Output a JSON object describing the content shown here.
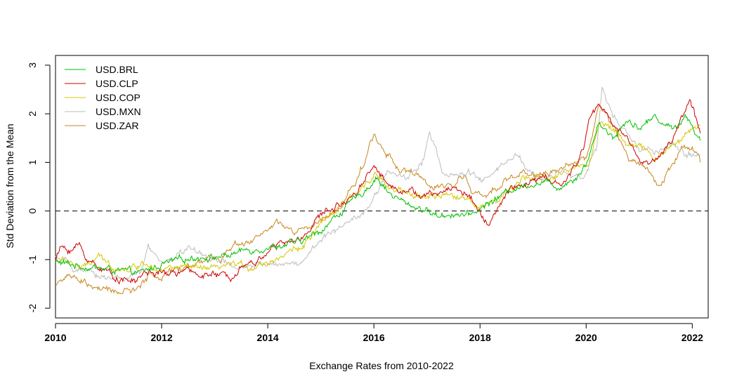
{
  "chart_data": {
    "type": "line",
    "title": "",
    "xlabel": "Exchange Rates from 2010-2022",
    "ylabel": "Std Deviation from the Mean",
    "xlim": [
      2010,
      2022.3
    ],
    "ylim": [
      -2.2,
      3.2
    ],
    "x_ticks": [
      2010,
      2012,
      2014,
      2016,
      2018,
      2020,
      2022
    ],
    "y_ticks": [
      -2,
      -1,
      0,
      1,
      2,
      3
    ],
    "reference_line": {
      "y": 0,
      "style": "dashed",
      "color": "#000000"
    },
    "legend": {
      "position": "top-left"
    },
    "grid": false,
    "series": [
      {
        "name": "USD.BRL",
        "color": "#00c000",
        "points": [
          [
            2010.0,
            -1.05
          ],
          [
            2010.3,
            -1.1
          ],
          [
            2010.6,
            -1.15
          ],
          [
            2011.0,
            -1.2
          ],
          [
            2011.3,
            -1.25
          ],
          [
            2011.6,
            -1.28
          ],
          [
            2012.0,
            -1.1
          ],
          [
            2012.3,
            -1.02
          ],
          [
            2012.6,
            -0.95
          ],
          [
            2013.0,
            -0.95
          ],
          [
            2013.3,
            -0.9
          ],
          [
            2013.6,
            -0.8
          ],
          [
            2014.0,
            -0.75
          ],
          [
            2014.3,
            -0.7
          ],
          [
            2014.6,
            -0.65
          ],
          [
            2015.0,
            -0.4
          ],
          [
            2015.3,
            -0.1
          ],
          [
            2015.6,
            0.2
          ],
          [
            2015.9,
            0.5
          ],
          [
            2016.05,
            0.7
          ],
          [
            2016.3,
            0.35
          ],
          [
            2016.6,
            0.15
          ],
          [
            2016.9,
            0.05
          ],
          [
            2017.2,
            -0.1
          ],
          [
            2017.5,
            -0.05
          ],
          [
            2017.8,
            -0.1
          ],
          [
            2018.0,
            0.05
          ],
          [
            2018.3,
            0.25
          ],
          [
            2018.6,
            0.45
          ],
          [
            2018.9,
            0.55
          ],
          [
            2019.2,
            0.6
          ],
          [
            2019.5,
            0.5
          ],
          [
            2019.8,
            0.7
          ],
          [
            2020.0,
            0.95
          ],
          [
            2020.25,
            1.85
          ],
          [
            2020.5,
            1.5
          ],
          [
            2020.8,
            1.9
          ],
          [
            2021.0,
            1.7
          ],
          [
            2021.3,
            1.95
          ],
          [
            2021.6,
            1.7
          ],
          [
            2021.9,
            1.95
          ],
          [
            2022.15,
            1.45
          ]
        ]
      },
      {
        "name": "USD.CLP",
        "color": "#cc0000",
        "points": [
          [
            2010.0,
            -1.0
          ],
          [
            2010.1,
            -0.75
          ],
          [
            2010.3,
            -0.8
          ],
          [
            2010.45,
            -0.7
          ],
          [
            2010.6,
            -1.0
          ],
          [
            2010.9,
            -1.2
          ],
          [
            2011.2,
            -1.4
          ],
          [
            2011.5,
            -1.45
          ],
          [
            2011.7,
            -1.25
          ],
          [
            2012.0,
            -1.3
          ],
          [
            2012.4,
            -1.25
          ],
          [
            2012.8,
            -1.3
          ],
          [
            2013.0,
            -1.32
          ],
          [
            2013.3,
            -1.35
          ],
          [
            2013.5,
            -1.1
          ],
          [
            2013.8,
            -1.05
          ],
          [
            2014.0,
            -0.8
          ],
          [
            2014.3,
            -0.65
          ],
          [
            2014.6,
            -0.6
          ],
          [
            2014.9,
            -0.2
          ],
          [
            2015.1,
            0.0
          ],
          [
            2015.4,
            0.15
          ],
          [
            2015.7,
            0.45
          ],
          [
            2016.0,
            0.95
          ],
          [
            2016.3,
            0.5
          ],
          [
            2016.6,
            0.45
          ],
          [
            2016.9,
            0.3
          ],
          [
            2017.2,
            0.35
          ],
          [
            2017.5,
            0.5
          ],
          [
            2017.8,
            0.3
          ],
          [
            2018.0,
            0.0
          ],
          [
            2018.15,
            -0.3
          ],
          [
            2018.35,
            0.05
          ],
          [
            2018.6,
            0.5
          ],
          [
            2018.9,
            0.55
          ],
          [
            2019.2,
            0.7
          ],
          [
            2019.5,
            0.5
          ],
          [
            2019.8,
            0.9
          ],
          [
            2019.95,
            1.3
          ],
          [
            2020.05,
            1.9
          ],
          [
            2020.25,
            2.2
          ],
          [
            2020.5,
            1.8
          ],
          [
            2020.8,
            1.5
          ],
          [
            2021.0,
            1.0
          ],
          [
            2021.3,
            1.05
          ],
          [
            2021.6,
            1.4
          ],
          [
            2021.95,
            2.3
          ],
          [
            2022.15,
            1.6
          ]
        ]
      },
      {
        "name": "USD.COP",
        "color": "#d4c800",
        "points": [
          [
            2010.0,
            -1.0
          ],
          [
            2010.3,
            -1.05
          ],
          [
            2010.5,
            -1.2
          ],
          [
            2010.8,
            -0.95
          ],
          [
            2011.1,
            -1.15
          ],
          [
            2011.4,
            -1.2
          ],
          [
            2011.7,
            -1.05
          ],
          [
            2012.0,
            -1.2
          ],
          [
            2012.4,
            -1.15
          ],
          [
            2012.8,
            -1.2
          ],
          [
            2013.0,
            -1.2
          ],
          [
            2013.4,
            -1.1
          ],
          [
            2013.7,
            -1.15
          ],
          [
            2014.0,
            -1.05
          ],
          [
            2014.3,
            -0.9
          ],
          [
            2014.6,
            -0.75
          ],
          [
            2014.9,
            -0.45
          ],
          [
            2015.1,
            -0.15
          ],
          [
            2015.4,
            0.1
          ],
          [
            2015.7,
            0.4
          ],
          [
            2016.0,
            0.8
          ],
          [
            2016.3,
            0.45
          ],
          [
            2016.6,
            0.35
          ],
          [
            2016.9,
            0.3
          ],
          [
            2017.2,
            0.3
          ],
          [
            2017.5,
            0.3
          ],
          [
            2017.8,
            0.25
          ],
          [
            2018.0,
            0.1
          ],
          [
            2018.3,
            0.2
          ],
          [
            2018.6,
            0.45
          ],
          [
            2018.9,
            0.7
          ],
          [
            2019.2,
            0.65
          ],
          [
            2019.5,
            0.75
          ],
          [
            2019.8,
            0.9
          ],
          [
            2020.05,
            1.0
          ],
          [
            2020.25,
            1.8
          ],
          [
            2020.5,
            1.7
          ],
          [
            2020.8,
            1.4
          ],
          [
            2021.0,
            1.3
          ],
          [
            2021.3,
            1.1
          ],
          [
            2021.6,
            1.3
          ],
          [
            2021.9,
            1.6
          ],
          [
            2022.15,
            1.75
          ]
        ]
      },
      {
        "name": "USD.MXN",
        "color": "#bdbdbd",
        "points": [
          [
            2010.0,
            -0.95
          ],
          [
            2010.3,
            -1.15
          ],
          [
            2010.6,
            -1.3
          ],
          [
            2011.0,
            -1.35
          ],
          [
            2011.3,
            -1.4
          ],
          [
            2011.6,
            -1.3
          ],
          [
            2011.75,
            -0.75
          ],
          [
            2012.0,
            -1.1
          ],
          [
            2012.3,
            -0.9
          ],
          [
            2012.5,
            -0.75
          ],
          [
            2012.8,
            -0.95
          ],
          [
            2013.1,
            -1.0
          ],
          [
            2013.4,
            -1.2
          ],
          [
            2013.7,
            -1.15
          ],
          [
            2014.0,
            -1.1
          ],
          [
            2014.3,
            -1.05
          ],
          [
            2014.6,
            -1.1
          ],
          [
            2014.9,
            -0.7
          ],
          [
            2015.2,
            -0.45
          ],
          [
            2015.5,
            -0.2
          ],
          [
            2015.8,
            0.0
          ],
          [
            2016.05,
            0.3
          ],
          [
            2016.25,
            0.85
          ],
          [
            2016.6,
            0.65
          ],
          [
            2016.9,
            1.0
          ],
          [
            2017.05,
            1.6
          ],
          [
            2017.3,
            0.8
          ],
          [
            2017.6,
            0.7
          ],
          [
            2017.8,
            0.8
          ],
          [
            2018.0,
            0.6
          ],
          [
            2018.3,
            0.8
          ],
          [
            2018.5,
            1.0
          ],
          [
            2018.7,
            1.15
          ],
          [
            2018.9,
            0.85
          ],
          [
            2019.2,
            0.6
          ],
          [
            2019.5,
            0.85
          ],
          [
            2019.8,
            0.75
          ],
          [
            2020.0,
            0.75
          ],
          [
            2020.2,
            1.3
          ],
          [
            2020.3,
            2.55
          ],
          [
            2020.5,
            1.95
          ],
          [
            2020.8,
            1.5
          ],
          [
            2021.0,
            1.3
          ],
          [
            2021.3,
            1.2
          ],
          [
            2021.6,
            1.35
          ],
          [
            2021.9,
            1.15
          ],
          [
            2022.15,
            1.15
          ]
        ]
      },
      {
        "name": "USD.ZAR",
        "color": "#c8861e",
        "points": [
          [
            2010.0,
            -1.5
          ],
          [
            2010.2,
            -1.35
          ],
          [
            2010.5,
            -1.45
          ],
          [
            2010.8,
            -1.6
          ],
          [
            2011.0,
            -1.65
          ],
          [
            2011.3,
            -1.65
          ],
          [
            2011.6,
            -1.6
          ],
          [
            2011.75,
            -1.3
          ],
          [
            2012.0,
            -1.35
          ],
          [
            2012.3,
            -1.2
          ],
          [
            2012.6,
            -1.1
          ],
          [
            2012.9,
            -0.95
          ],
          [
            2013.1,
            -1.0
          ],
          [
            2013.4,
            -0.65
          ],
          [
            2013.7,
            -0.6
          ],
          [
            2014.0,
            -0.4
          ],
          [
            2014.2,
            -0.25
          ],
          [
            2014.5,
            -0.45
          ],
          [
            2014.8,
            -0.35
          ],
          [
            2015.1,
            -0.15
          ],
          [
            2015.4,
            0.1
          ],
          [
            2015.7,
            0.7
          ],
          [
            2016.0,
            1.55
          ],
          [
            2016.2,
            1.25
          ],
          [
            2016.5,
            0.85
          ],
          [
            2016.8,
            0.75
          ],
          [
            2017.1,
            0.45
          ],
          [
            2017.4,
            0.5
          ],
          [
            2017.7,
            0.75
          ],
          [
            2017.9,
            0.35
          ],
          [
            2018.1,
            0.25
          ],
          [
            2018.3,
            0.5
          ],
          [
            2018.6,
            0.7
          ],
          [
            2018.9,
            0.8
          ],
          [
            2019.2,
            0.75
          ],
          [
            2019.5,
            0.85
          ],
          [
            2019.8,
            1.0
          ],
          [
            2020.0,
            1.1
          ],
          [
            2020.25,
            2.2
          ],
          [
            2020.5,
            1.75
          ],
          [
            2020.8,
            1.1
          ],
          [
            2021.0,
            1.0
          ],
          [
            2021.2,
            0.8
          ],
          [
            2021.4,
            0.5
          ],
          [
            2021.6,
            0.9
          ],
          [
            2021.8,
            1.3
          ],
          [
            2022.0,
            1.3
          ],
          [
            2022.15,
            1.0
          ]
        ]
      }
    ]
  }
}
